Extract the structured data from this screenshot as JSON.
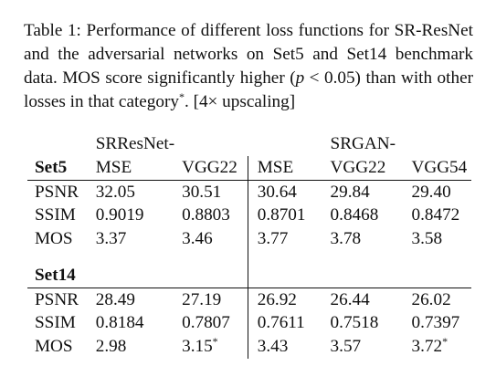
{
  "caption": {
    "part1": "Table 1: Performance of different loss functions for SR-ResNet and the adversarial networks on Set5 and Set14 benchmark data. MOS score significantly higher (",
    "p_symbol": "p",
    "part2": " < 0.05) than with other losses in that category",
    "asterisk": "*",
    "part3": ". [4× upscaling]"
  },
  "table": {
    "group_headers": [
      "SRResNet-",
      "SRGAN-"
    ],
    "sections": [
      {
        "name": "Set5",
        "columns": [
          "MSE",
          "VGG22",
          "MSE",
          "VGG22",
          "VGG54"
        ],
        "rows": [
          {
            "metric": "PSNR",
            "values": [
              "32.05",
              "30.51",
              "30.64",
              "29.84",
              "29.40"
            ],
            "marks": [
              "",
              "",
              "",
              "",
              ""
            ]
          },
          {
            "metric": "SSIM",
            "values": [
              "0.9019",
              "0.8803",
              "0.8701",
              "0.8468",
              "0.8472"
            ],
            "marks": [
              "",
              "",
              "",
              "",
              ""
            ]
          },
          {
            "metric": "MOS",
            "values": [
              "3.37",
              "3.46",
              "3.77",
              "3.78",
              "3.58"
            ],
            "marks": [
              "",
              "",
              "",
              "",
              ""
            ]
          }
        ]
      },
      {
        "name": "Set14",
        "rows": [
          {
            "metric": "PSNR",
            "values": [
              "28.49",
              "27.19",
              "26.92",
              "26.44",
              "26.02"
            ],
            "marks": [
              "",
              "",
              "",
              "",
              ""
            ]
          },
          {
            "metric": "SSIM",
            "values": [
              "0.8184",
              "0.7807",
              "0.7611",
              "0.7518",
              "0.7397"
            ],
            "marks": [
              "",
              "",
              "",
              "",
              ""
            ]
          },
          {
            "metric": "MOS",
            "values": [
              "2.98",
              "3.15",
              "3.43",
              "3.57",
              "3.72"
            ],
            "marks": [
              "",
              "*",
              "",
              "",
              "*"
            ]
          }
        ]
      }
    ]
  }
}
